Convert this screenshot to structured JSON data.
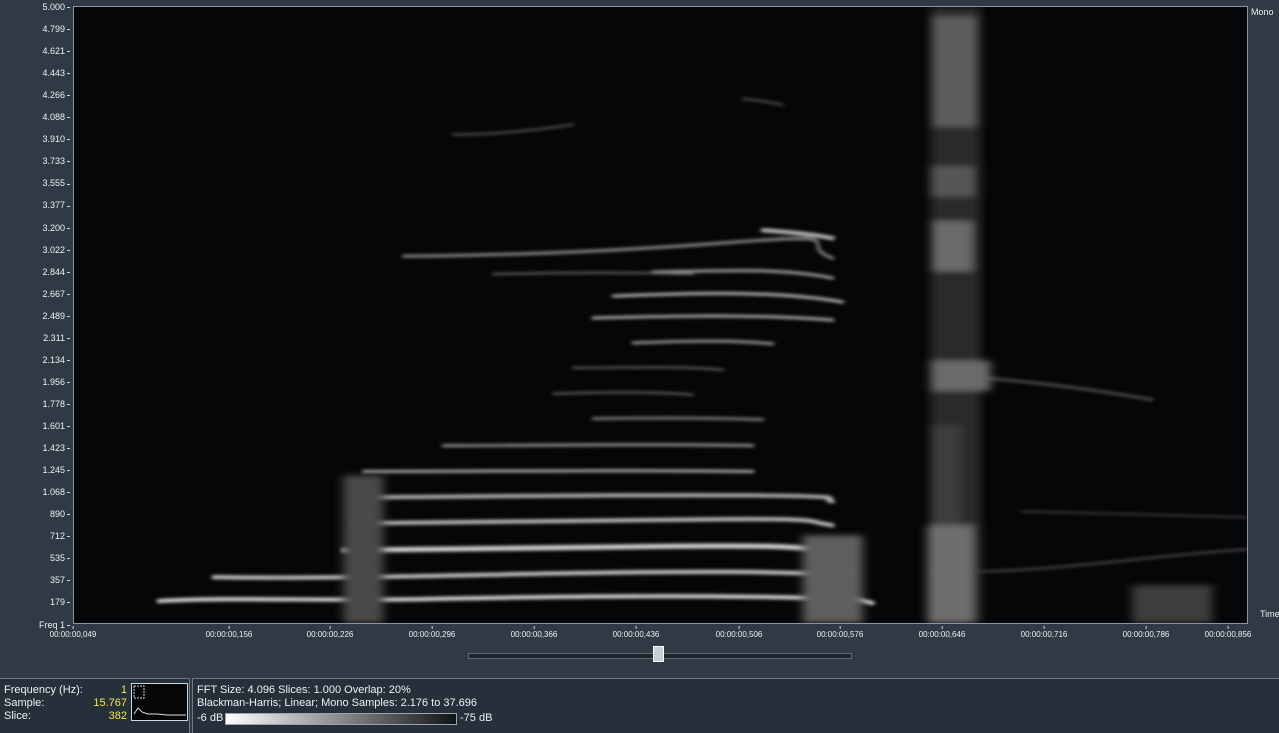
{
  "channel_label": "Mono",
  "y_axis": {
    "ticks": [
      "5.000",
      "4.799",
      "4.621",
      "4.443",
      "4.266",
      "4.088",
      "3.910",
      "3.733",
      "3.555",
      "3.377",
      "3.200",
      "3.022",
      "2.844",
      "2.667",
      "2.489",
      "2.311",
      "2.134",
      "1.956",
      "1.778",
      "1.601",
      "1.423",
      "1.245",
      "1.068",
      "890",
      "712",
      "535",
      "357",
      "179"
    ],
    "bottom_label": "Freq 1"
  },
  "x_axis": {
    "ticks": [
      "00:00:00,049",
      "00:00:00,156",
      "00:00:00,226",
      "00:00:00,296",
      "00:00:00,366",
      "00:00:00,436",
      "00:00:00,506",
      "00:00:00,576",
      "00:00:00,646",
      "00:00:00,716",
      "00:00:00,786",
      "00:00:00,856"
    ],
    "label": "Time"
  },
  "scrollbar": {
    "position": 0.5
  },
  "info": {
    "frequency_label": "Frequency (Hz):",
    "frequency_value": "1",
    "sample_label": "Sample:",
    "sample_value": "15.767",
    "slice_label": "Slice:",
    "slice_value": "382"
  },
  "fft": {
    "line1": "FFT Size: 4.096  Slices: 1.000  Overlap: 20%",
    "line2": "Blackman-Harris; Linear; Mono  Samples: 2.176 to 37.696",
    "db_min_label": "-6 dB",
    "db_max_label": "-75 dB"
  }
}
